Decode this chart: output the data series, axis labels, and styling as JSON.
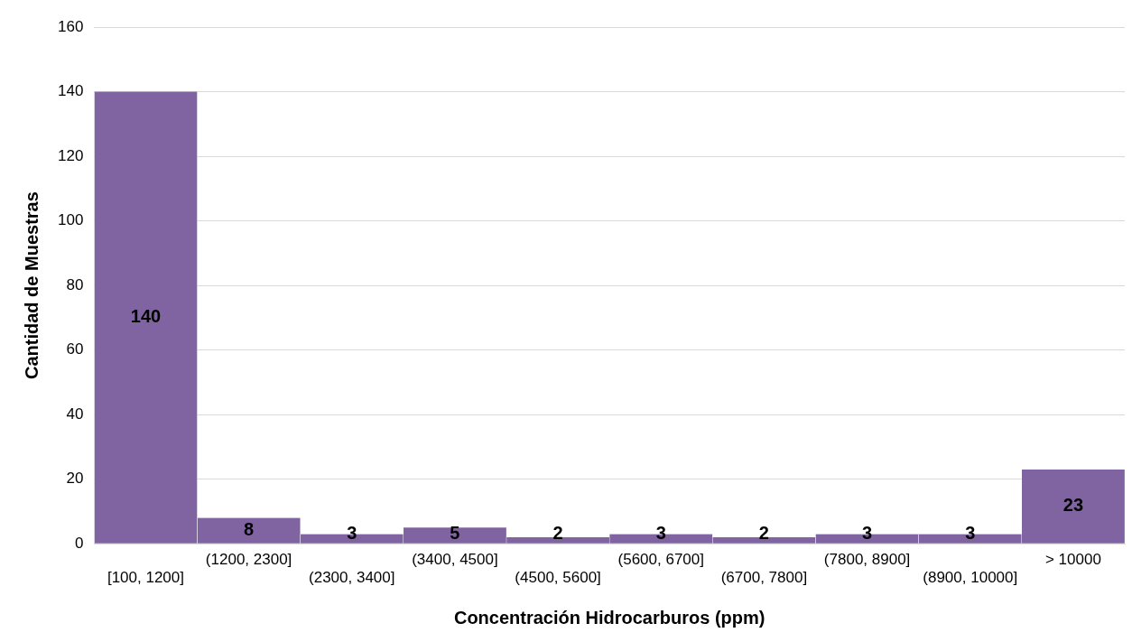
{
  "chart_data": {
    "type": "bar",
    "xlabel": "Concentración Hidrocarburos (ppm)",
    "ylabel": "Cantidad de Muestras",
    "categories": [
      "[100, 1200]",
      "(1200, 2300]",
      "(2300, 3400]",
      "(3400, 4500]",
      "(4500, 5600]",
      "(5600, 6700]",
      "(6700, 7800]",
      "(7800, 8900]",
      "(8900, 10000]",
      "> 10000"
    ],
    "values": [
      140,
      8,
      3,
      5,
      2,
      3,
      2,
      3,
      3,
      23
    ],
    "color": "#8064a2",
    "ylim": [
      0,
      160
    ],
    "yticks": [
      0,
      20,
      40,
      60,
      80,
      100,
      120,
      140,
      160
    ],
    "grid": "y",
    "legend": false,
    "data_labels": true
  }
}
